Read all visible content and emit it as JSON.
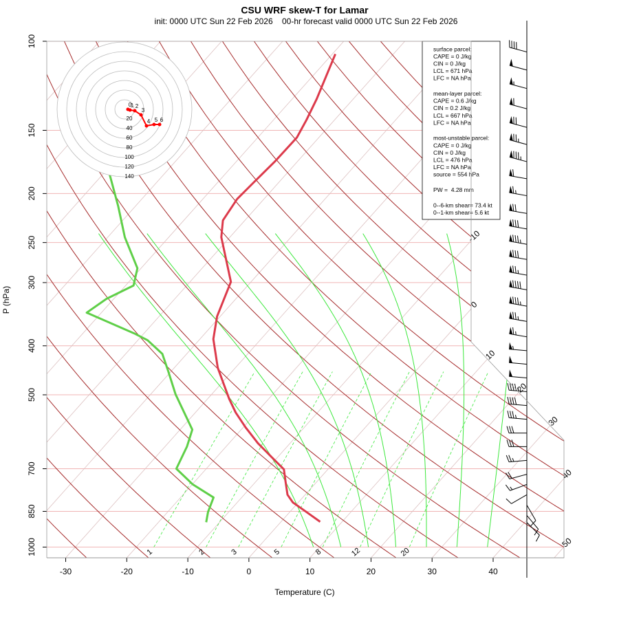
{
  "chart_data": {
    "type": "skewt",
    "title": "CSU WRF skew-T for Lamar",
    "subtitle": "init: 0000 UTC Sun 22 Feb 2026    00-hr forecast valid 0000 UTC Sun 22 Feb 2026",
    "xlabel": "Temperature (C)",
    "ylabel": "P (hPa)",
    "xlim": [
      -33.1,
      51.6
    ],
    "ylim": [
      1050,
      100
    ],
    "xticks": [
      -30,
      -20,
      -10,
      0,
      10,
      20,
      30,
      40
    ],
    "yticks": [
      100,
      150,
      200,
      250,
      300,
      400,
      500,
      700,
      850,
      1000
    ],
    "log_y": true,
    "grid": true,
    "series": [
      {
        "color": "#dc3a4b",
        "pressure": [
          891,
          852,
          816,
          788,
          741,
          702,
          664,
          623,
          580,
          542,
          509,
          442,
          388,
          350,
          299,
          244,
          226,
          205,
          190,
          173,
          155,
          143,
          130,
          106
        ],
        "values": [
          6.4,
          2.7,
          -0.9,
          -2.9,
          -5.2,
          -7.2,
          -11.0,
          -15.3,
          -19.6,
          -23.4,
          -26.5,
          -32.9,
          -37.8,
          -40.5,
          -43.3,
          -51.4,
          -53.6,
          -54.4,
          -54.1,
          -53.7,
          -53.6,
          -54.6,
          -56.0,
          -59.5
        ]
      },
      {
        "color": "#5fcf48",
        "pressure": [
          893,
          852,
          798,
          752,
          700,
          633,
          586,
          499,
          449,
          415,
          390,
          378,
          344,
          323,
          304,
          281,
          244,
          212,
          181
        ],
        "values": [
          -12.2,
          -13.4,
          -14.6,
          -19.9,
          -24.9,
          -26.4,
          -28.0,
          -35.9,
          -40.5,
          -44.0,
          -48.4,
          -51.6,
          -62.4,
          -61.2,
          -58.7,
          -60.6,
          -67.2,
          -72.8,
          -79.4
        ]
      }
    ],
    "isotherms": [
      -10,
      0,
      10,
      20,
      30,
      40,
      50
    ],
    "extra_isotherms": [
      -110,
      -100,
      -90,
      -80,
      -70,
      -60,
      -50,
      -40,
      -30,
      -20
    ],
    "isotherm_color": "#a52a2a",
    "dry_adiabats": [
      -30,
      -20,
      -10,
      0,
      10,
      20,
      30,
      40,
      50,
      60,
      70,
      80,
      90,
      100,
      110,
      120,
      130,
      140,
      150
    ],
    "moist_adiabats": [
      9,
      13.5,
      18,
      22.5,
      27.5,
      32.5,
      37.5
    ],
    "mixing_ratios": [
      1,
      2,
      3,
      5,
      8,
      12,
      20
    ],
    "hodograph": {
      "rings": [
        20,
        40,
        60,
        80,
        100,
        120,
        140
      ],
      "labels": [
        0,
        1,
        2,
        3,
        4,
        5,
        6
      ],
      "u": [
        7.1,
        11.4,
        21.4,
        34.3,
        45.7,
        61.4,
        72.9
      ],
      "v": [
        0,
        -1.4,
        -2.9,
        -11.4,
        -34.3,
        -31.4,
        -31.4
      ],
      "color": "#ff0000"
    },
    "wind": {
      "pressure": [
        105,
        114,
        124,
        136,
        148,
        160,
        173,
        187,
        202,
        219,
        235,
        252,
        270,
        290,
        310,
        334,
        358,
        384,
        409,
        435,
        463,
        493,
        525,
        559,
        595,
        633,
        674,
        718,
        752,
        788,
        826,
        866,
        894
      ],
      "speed": [
        40,
        50,
        55,
        60,
        70,
        75,
        85,
        60,
        65,
        70,
        80,
        85,
        80,
        75,
        90,
        85,
        75,
        65,
        55,
        50,
        50,
        45,
        40,
        35,
        30,
        30,
        25,
        20,
        15,
        10,
        10,
        10,
        10
      ],
      "direction": [
        285,
        285,
        285,
        285,
        285,
        285,
        285,
        280,
        280,
        280,
        280,
        280,
        280,
        280,
        280,
        280,
        280,
        280,
        275,
        275,
        275,
        275,
        275,
        275,
        270,
        270,
        265,
        255,
        250,
        240,
        150,
        140,
        135
      ]
    },
    "info": [
      [
        "surface parcel:",
        "CAPE = 0 J/kg",
        "CIN = 0 J/kg",
        "LCL = 671 hPa",
        "LFC = NA hPa"
      ],
      [
        "mean-layer parcel:",
        "CAPE = 0.6 J/kg",
        "CIN = 0.2 J/kg",
        "LCL = 667 hPa",
        "LFC = NA hPa"
      ],
      [
        "most-unstable parcel:",
        "CAPE = 0 J/kg",
        "CIN = 0 J/kg",
        "LCL = 476 hPa",
        "LFC = NA hPa",
        "source = 554 hPa"
      ],
      [
        "PW =  4.28 mm"
      ],
      [
        "0--6-km shear= 73.4 kt",
        "0--1-km shear= 5.6 kt"
      ]
    ]
  }
}
